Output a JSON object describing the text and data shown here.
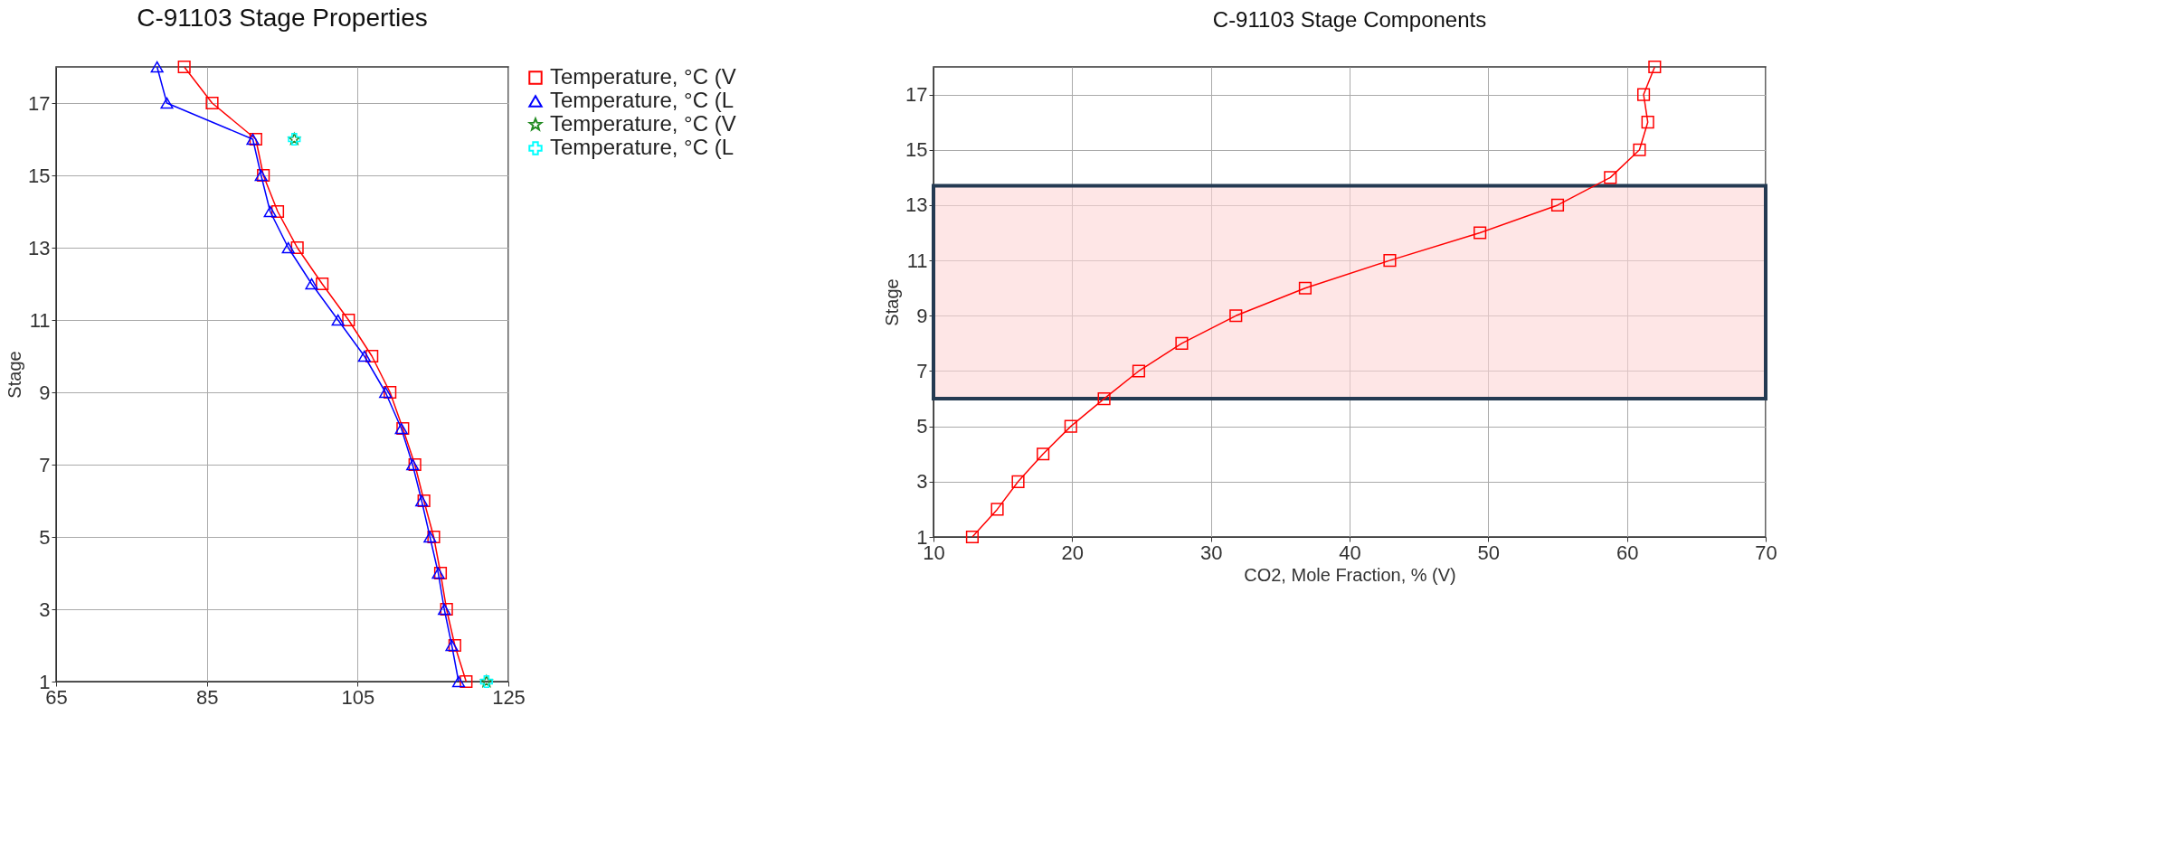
{
  "chart_data": [
    {
      "type": "line",
      "title": "C-91103 Stage Properties",
      "ylabel": "Stage",
      "xlim": [
        65,
        125
      ],
      "xticks": [
        65,
        85,
        105,
        125
      ],
      "ylim": [
        1,
        18
      ],
      "yticks": [
        1,
        3,
        5,
        7,
        9,
        11,
        13,
        15,
        17
      ],
      "grid": true,
      "legend": "top right",
      "series": [
        {
          "name": "Temperature, °C (V",
          "color": "#ff0000",
          "marker": "square",
          "x": [
            82.0,
            85.7,
            91.5,
            92.5,
            94.4,
            97.0,
            100.3,
            103.8,
            106.9,
            109.3,
            111.0,
            112.6,
            113.8,
            115.1,
            116.0,
            116.8,
            117.9,
            119.4
          ],
          "values": [
            18,
            17,
            16,
            15,
            14,
            13,
            12,
            11,
            10,
            9,
            8,
            7,
            6,
            5,
            4,
            3,
            2,
            1
          ]
        },
        {
          "name": "Temperature, °C (L",
          "color": "#0000ff",
          "marker": "triangle",
          "x": [
            78.4,
            79.7,
            91.1,
            92.2,
            93.4,
            95.8,
            98.9,
            102.4,
            105.9,
            108.7,
            110.8,
            112.3,
            113.5,
            114.6,
            115.7,
            116.5,
            117.5,
            118.4
          ],
          "values": [
            18,
            17,
            16,
            15,
            14,
            13,
            12,
            11,
            10,
            9,
            8,
            7,
            6,
            5,
            4,
            3,
            2,
            1
          ]
        },
        {
          "name": "Temperature, °C (V",
          "color": "#228b22",
          "marker": "star",
          "type": "scatter",
          "x": [
            96.6,
            122.1
          ],
          "values": [
            16,
            1
          ]
        },
        {
          "name": "Temperature, °C (L",
          "color": "#00ffff",
          "marker": "cross",
          "type": "scatter",
          "x": [
            96.6,
            122.1
          ],
          "values": [
            16,
            1
          ]
        }
      ]
    },
    {
      "type": "line",
      "title": "C-91103 Stage Components",
      "ylabel": "Stage",
      "xlabel": "CO2, Mole Fraction, % (V)",
      "xlim": [
        10,
        70
      ],
      "xticks": [
        10,
        20,
        30,
        40,
        50,
        60,
        70
      ],
      "ylim": [
        1,
        18
      ],
      "yticks": [
        1,
        3,
        5,
        7,
        9,
        11,
        13,
        15,
        17
      ],
      "grid": true,
      "bands": [
        {
          "axis": "y",
          "from": 6,
          "to": 13.7,
          "color": "#fdd5d5"
        }
      ],
      "series": [
        {
          "color": "#ff0000",
          "marker": "square",
          "x": [
            12.8,
            14.6,
            16.1,
            17.9,
            19.9,
            22.3,
            24.8,
            27.9,
            31.8,
            36.8,
            42.9,
            49.4,
            55.0,
            58.8,
            60.9,
            61.5,
            61.2,
            62.0
          ],
          "values": [
            1,
            2,
            3,
            4,
            5,
            6,
            7,
            8,
            9,
            10,
            11,
            12,
            13,
            14,
            15,
            16,
            17,
            18
          ]
        }
      ]
    }
  ]
}
